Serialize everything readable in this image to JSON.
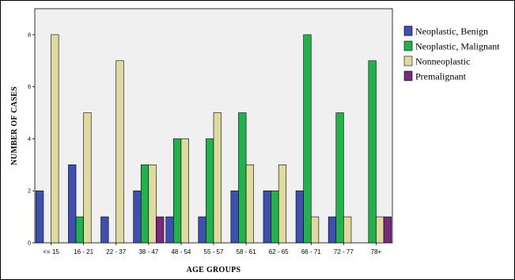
{
  "chart_data": {
    "type": "bar",
    "xlabel": "AGE GROUPS",
    "ylabel": "NUMBER OF CASES",
    "categories": [
      "<= 15",
      "16 - 21",
      "22 - 37",
      "38 - 47",
      "48 - 54",
      "55 - 57",
      "58 - 61",
      "62 - 65",
      "66 - 71",
      "72 - 77",
      "78+"
    ],
    "series": [
      {
        "name": "Neoplastic, Benign",
        "color": "#3f4fb0",
        "values": [
          2,
          3,
          1,
          2,
          1,
          1,
          2,
          2,
          2,
          1,
          0
        ]
      },
      {
        "name": "Neoplastic, Malignant",
        "color": "#22b24c",
        "values": [
          0,
          1,
          0,
          3,
          4,
          4,
          5,
          2,
          8,
          5,
          7
        ]
      },
      {
        "name": "Nonneoplastic",
        "color": "#dedaa0",
        "values": [
          8,
          5,
          7,
          3,
          4,
          5,
          3,
          3,
          1,
          1,
          1
        ]
      },
      {
        "name": "Premalignant",
        "color": "#7a2a7c",
        "values": [
          0,
          0,
          0,
          1,
          0,
          0,
          0,
          0,
          0,
          0,
          1
        ]
      }
    ],
    "ylim": [
      0,
      9
    ],
    "yticks": [
      0,
      2,
      4,
      6,
      8
    ],
    "grid": false,
    "legend": "top-right",
    "plot_background": "#f0f0f0"
  }
}
